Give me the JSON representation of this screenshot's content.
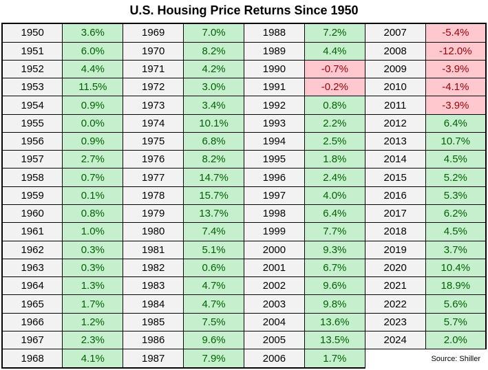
{
  "title": "U.S. Housing Price Returns Since 1950",
  "source": "Source: Shiller",
  "colors": {
    "positive_bg": "#C6EFCE",
    "positive_text": "#006100",
    "negative_bg": "#FFC7CE",
    "negative_text": "#9C0006",
    "year_bg": "#F2F2F2",
    "border": "#000000"
  },
  "layout": {
    "rows_per_column_group": 19,
    "column_groups": 4
  },
  "chart_data": {
    "type": "table",
    "title": "U.S. Housing Price Returns Since 1950",
    "unit": "%",
    "source": "Source: Shiller",
    "entries": [
      {
        "year": "1950",
        "return": "3.6%"
      },
      {
        "year": "1951",
        "return": "6.0%"
      },
      {
        "year": "1952",
        "return": "4.4%"
      },
      {
        "year": "1953",
        "return": "11.5%"
      },
      {
        "year": "1954",
        "return": "0.9%"
      },
      {
        "year": "1955",
        "return": "0.0%"
      },
      {
        "year": "1956",
        "return": "0.9%"
      },
      {
        "year": "1957",
        "return": "2.7%"
      },
      {
        "year": "1958",
        "return": "0.7%"
      },
      {
        "year": "1959",
        "return": "0.1%"
      },
      {
        "year": "1960",
        "return": "0.8%"
      },
      {
        "year": "1961",
        "return": "1.0%"
      },
      {
        "year": "1962",
        "return": "0.3%"
      },
      {
        "year": "1963",
        "return": "0.3%"
      },
      {
        "year": "1964",
        "return": "1.3%"
      },
      {
        "year": "1965",
        "return": "1.7%"
      },
      {
        "year": "1966",
        "return": "1.2%"
      },
      {
        "year": "1967",
        "return": "2.3%"
      },
      {
        "year": "1968",
        "return": "4.1%"
      },
      {
        "year": "1969",
        "return": "7.0%"
      },
      {
        "year": "1970",
        "return": "8.2%"
      },
      {
        "year": "1971",
        "return": "4.2%"
      },
      {
        "year": "1972",
        "return": "3.0%"
      },
      {
        "year": "1973",
        "return": "3.4%"
      },
      {
        "year": "1974",
        "return": "10.1%"
      },
      {
        "year": "1975",
        "return": "6.8%"
      },
      {
        "year": "1976",
        "return": "8.2%"
      },
      {
        "year": "1977",
        "return": "14.7%"
      },
      {
        "year": "1978",
        "return": "15.7%"
      },
      {
        "year": "1979",
        "return": "13.7%"
      },
      {
        "year": "1980",
        "return": "7.4%"
      },
      {
        "year": "1981",
        "return": "5.1%"
      },
      {
        "year": "1982",
        "return": "0.6%"
      },
      {
        "year": "1983",
        "return": "4.7%"
      },
      {
        "year": "1984",
        "return": "4.7%"
      },
      {
        "year": "1985",
        "return": "7.5%"
      },
      {
        "year": "1986",
        "return": "9.6%"
      },
      {
        "year": "1987",
        "return": "7.9%"
      },
      {
        "year": "1988",
        "return": "7.2%"
      },
      {
        "year": "1989",
        "return": "4.4%"
      },
      {
        "year": "1990",
        "return": "-0.7%"
      },
      {
        "year": "1991",
        "return": "-0.2%"
      },
      {
        "year": "1992",
        "return": "0.8%"
      },
      {
        "year": "1993",
        "return": "2.2%"
      },
      {
        "year": "1994",
        "return": "2.5%"
      },
      {
        "year": "1995",
        "return": "1.8%"
      },
      {
        "year": "1996",
        "return": "2.4%"
      },
      {
        "year": "1997",
        "return": "4.0%"
      },
      {
        "year": "1998",
        "return": "6.4%"
      },
      {
        "year": "1999",
        "return": "7.7%"
      },
      {
        "year": "2000",
        "return": "9.3%"
      },
      {
        "year": "2001",
        "return": "6.7%"
      },
      {
        "year": "2002",
        "return": "9.6%"
      },
      {
        "year": "2003",
        "return": "9.8%"
      },
      {
        "year": "2004",
        "return": "13.6%"
      },
      {
        "year": "2005",
        "return": "13.5%"
      },
      {
        "year": "2006",
        "return": "1.7%"
      },
      {
        "year": "2007",
        "return": "-5.4%"
      },
      {
        "year": "2008",
        "return": "-12.0%"
      },
      {
        "year": "2009",
        "return": "-3.9%"
      },
      {
        "year": "2010",
        "return": "-4.1%"
      },
      {
        "year": "2011",
        "return": "-3.9%"
      },
      {
        "year": "2012",
        "return": "6.4%"
      },
      {
        "year": "2013",
        "return": "10.7%"
      },
      {
        "year": "2014",
        "return": "4.5%"
      },
      {
        "year": "2015",
        "return": "5.2%"
      },
      {
        "year": "2016",
        "return": "5.3%"
      },
      {
        "year": "2017",
        "return": "6.2%"
      },
      {
        "year": "2018",
        "return": "4.5%"
      },
      {
        "year": "2019",
        "return": "3.7%"
      },
      {
        "year": "2020",
        "return": "10.4%"
      },
      {
        "year": "2021",
        "return": "18.9%"
      },
      {
        "year": "2022",
        "return": "5.6%"
      },
      {
        "year": "2023",
        "return": "5.7%"
      },
      {
        "year": "2024",
        "return": "2.0%"
      }
    ]
  }
}
